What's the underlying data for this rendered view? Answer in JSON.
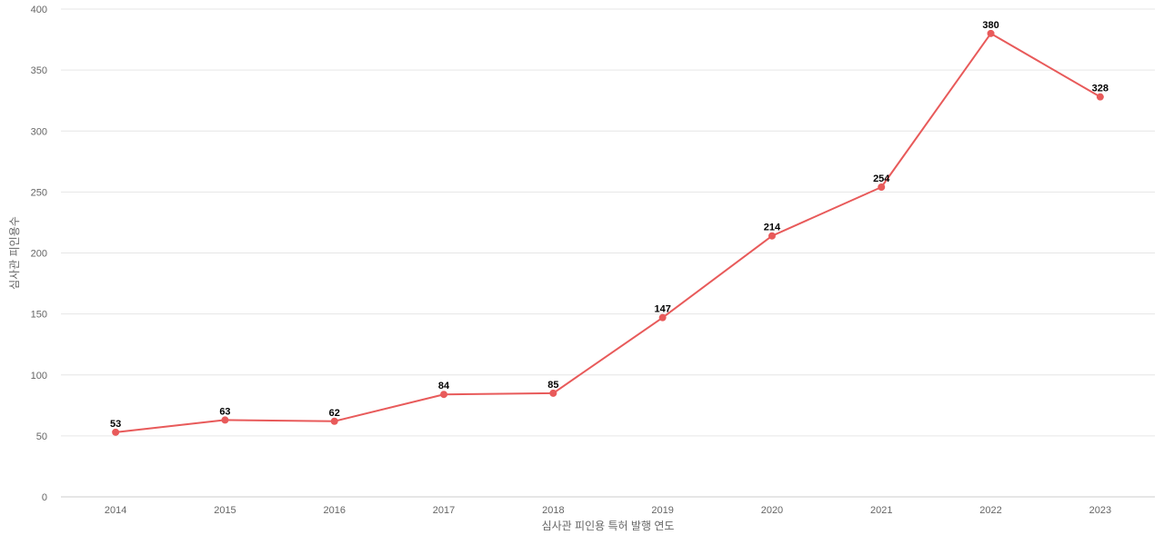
{
  "chart_data": {
    "type": "line",
    "title": "",
    "xlabel": "심사관 피인용 특허 발행 연도",
    "ylabel": "심사관 피인용수",
    "categories": [
      "2014",
      "2015",
      "2016",
      "2017",
      "2018",
      "2019",
      "2020",
      "2021",
      "2022",
      "2023"
    ],
    "series": [
      {
        "values": [
          53,
          63,
          62,
          84,
          85,
          147,
          214,
          254,
          380,
          328
        ],
        "color": "#e85a5a"
      }
    ],
    "ylim": [
      0,
      400
    ],
    "yticks": [
      0,
      50,
      100,
      150,
      200,
      250,
      300,
      350,
      400
    ],
    "grid": true,
    "data_labels": true,
    "legend": "none"
  }
}
